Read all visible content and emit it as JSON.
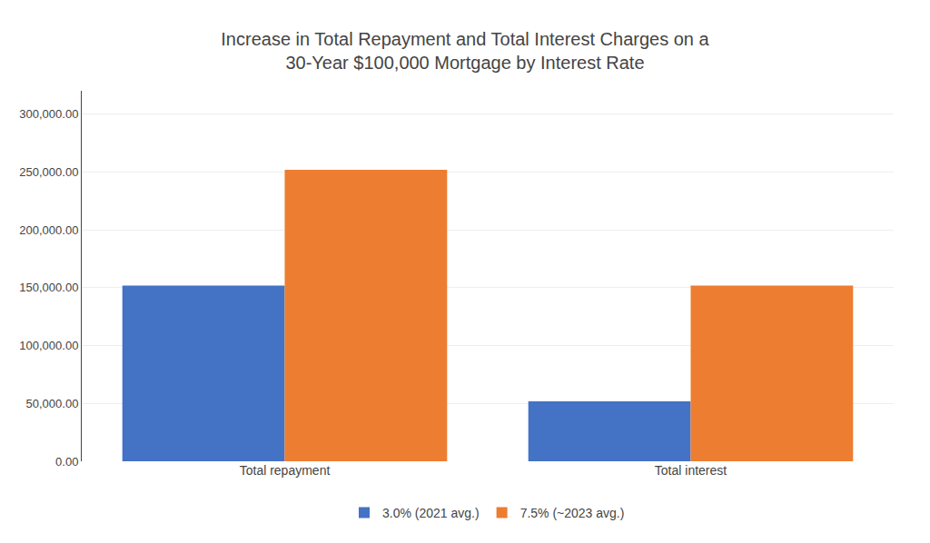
{
  "chart_data": {
    "type": "bar",
    "title": "Increase in Total Repayment and Total Interest Charges on a\n30-Year $100,000 Mortgage by Interest Rate",
    "categories": [
      "Total repayment",
      "Total interest"
    ],
    "series": [
      {
        "name": "3.0% (2021 avg.)",
        "color": "#4472C4",
        "values": [
          151777,
          51777
        ]
      },
      {
        "name": "7.5% (~2023 avg.)",
        "color": "#ED7D31",
        "values": [
          251717,
          151717
        ]
      }
    ],
    "ylim": [
      0,
      320000
    ],
    "yticks": [
      {
        "value": 0,
        "label": "0.00"
      },
      {
        "value": 50000,
        "label": "50,000.00"
      },
      {
        "value": 100000,
        "label": "100,000.00"
      },
      {
        "value": 150000,
        "label": "150,000.00"
      },
      {
        "value": 200000,
        "label": "200,000.00"
      },
      {
        "value": 250000,
        "label": "250,000.00"
      },
      {
        "value": 300000,
        "label": "300,000.00"
      }
    ],
    "grid": true,
    "legend": "bottom"
  }
}
